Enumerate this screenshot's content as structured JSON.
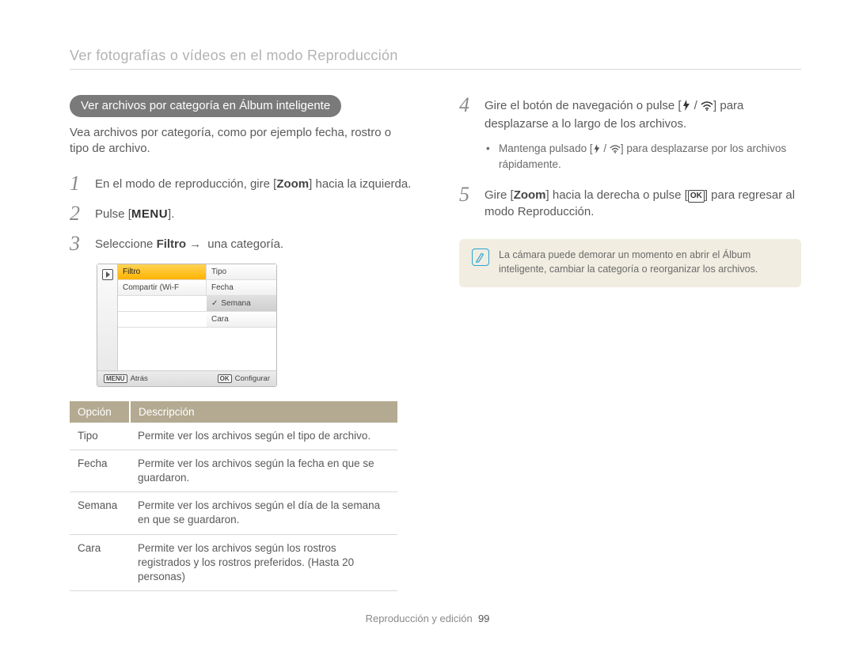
{
  "page_title": "Ver fotografías o vídeos en el modo Reproducción",
  "left": {
    "pill": "Ver archivos por categoría en Álbum inteligente",
    "intro": "Vea archivos por categoría, como por ejemplo fecha, rostro o tipo de archivo.",
    "step1_a": "En el modo de reproducción, gire [",
    "step1_zoom": "Zoom",
    "step1_b": "] hacia la izquierda.",
    "step2_a": "Pulse [",
    "step2_menu": "MENU",
    "step2_b": "].",
    "step3_a": "Seleccione ",
    "step3_filtro": "Filtro",
    "step3_b": " una categoría."
  },
  "cam": {
    "rows_left": [
      "Filtro",
      "Compartir (Wi-F"
    ],
    "rows_right": [
      "Tipo",
      "Fecha",
      "Semana",
      "Cara"
    ],
    "selected_left_idx": 0,
    "selected_right_idx": 2,
    "back_label": "Atrás",
    "menu_badge": "MENU",
    "ok_badge": "OK",
    "config_label": "Configurar"
  },
  "table": {
    "head_a": "Opción",
    "head_b": "Descripción",
    "rows": [
      {
        "a": "Tipo",
        "b": "Permite ver los archivos según el tipo de archivo."
      },
      {
        "a": "Fecha",
        "b": "Permite ver los archivos según la fecha en que se guardaron."
      },
      {
        "a": "Semana",
        "b": "Permite ver los archivos según el día de la semana en que se guardaron."
      },
      {
        "a": "Cara",
        "b": "Permite ver los archivos según los rostros registrados y los rostros preferidos. (Hasta 20 personas)"
      }
    ]
  },
  "right": {
    "step4_a": "Gire el botón de navegación o pulse [",
    "step4_b": "] para desplazarse a lo largo de los archivos.",
    "step4_sub_a": "Mantenga pulsado [",
    "step4_sub_b": "] para desplazarse por los archivos rápidamente.",
    "step5_a": "Gire [",
    "step5_zoom": "Zoom",
    "step5_b": "] hacia la derecha o pulse [",
    "step5_c": "] para regresar al modo Reproducción.",
    "ok_label": "OK"
  },
  "note": "La cámara puede demorar un momento en abrir el Álbum inteligente, cambiar la categoría o reorganizar los archivos.",
  "footer_text": "Reproducción y edición",
  "footer_page": "99",
  "icons": {
    "flash_wifi_color": "#333333"
  }
}
